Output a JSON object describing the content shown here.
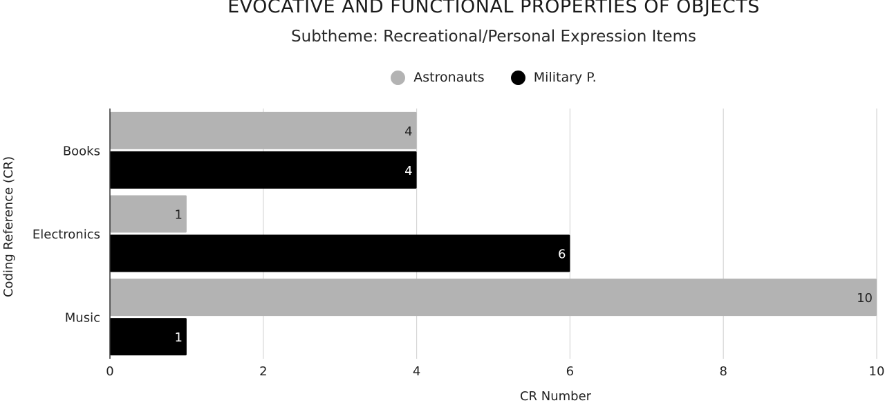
{
  "chart_data": {
    "type": "bar",
    "orientation": "horizontal",
    "title": "EVOCATIVE AND FUNCTIONAL PROPERTIES OF OBJECTS",
    "subtitle": "Subtheme: Recreational/Personal Expression Items",
    "xlabel": "CR Number",
    "ylabel": "Coding Reference (CR)",
    "categories": [
      "Books",
      "Electronics",
      "Music"
    ],
    "series": [
      {
        "name": "Astronauts",
        "values": [
          4,
          1,
          10
        ],
        "color": "#b3b3b3"
      },
      {
        "name": "Military P.",
        "values": [
          4,
          6,
          1
        ],
        "color": "#000000"
      }
    ],
    "xlim": [
      0,
      10
    ],
    "xticks": [
      0,
      2,
      4,
      6,
      8,
      10
    ],
    "grid": true,
    "legend_position": "top",
    "data_labels": true
  }
}
